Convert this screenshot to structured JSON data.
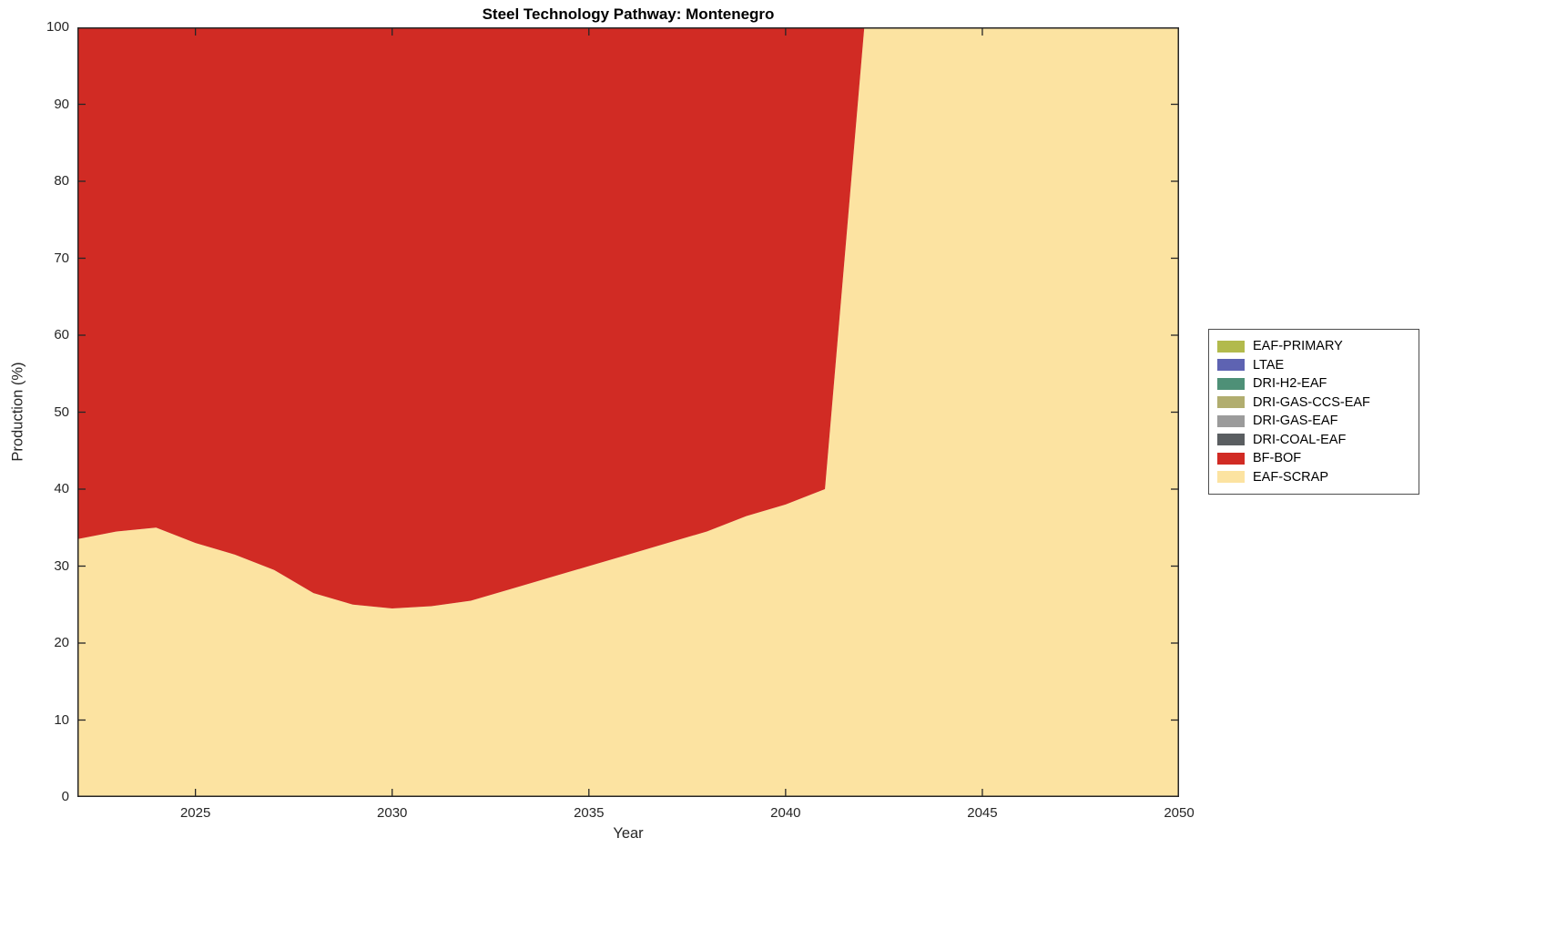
{
  "page": {
    "background": "#ffffff"
  },
  "chart_data": {
    "type": "area",
    "stacked": true,
    "title": "Steel Technology Pathway: Montenegro",
    "xlabel": "Year",
    "ylabel": "Production (%)",
    "xlim": [
      2022,
      2050
    ],
    "ylim": [
      0,
      100
    ],
    "x_ticks": [
      2025,
      2030,
      2035,
      2040,
      2045,
      2050
    ],
    "y_ticks": [
      0,
      10,
      20,
      30,
      40,
      50,
      60,
      70,
      80,
      90,
      100
    ],
    "grid": false,
    "axis_color": "#262626",
    "legend_position": "right-outside",
    "x": [
      2022,
      2023,
      2024,
      2025,
      2026,
      2027,
      2028,
      2029,
      2030,
      2031,
      2032,
      2033,
      2034,
      2035,
      2036,
      2037,
      2038,
      2039,
      2040,
      2041,
      2042,
      2043,
      2044,
      2045,
      2046,
      2047,
      2048,
      2049,
      2050
    ],
    "stack_order_bottom_to_top": [
      "EAF-SCRAP",
      "BF-BOF",
      "DRI-COAL-EAF",
      "DRI-GAS-EAF",
      "DRI-GAS-CCS-EAF",
      "DRI-H2-EAF",
      "LTAE",
      "EAF-PRIMARY"
    ],
    "series": [
      {
        "name": "EAF-PRIMARY",
        "color": "#b2ba4c",
        "values": [
          0,
          0,
          0,
          0,
          0,
          0,
          0,
          0,
          0,
          0,
          0,
          0,
          0,
          0,
          0,
          0,
          0,
          0,
          0,
          0,
          0,
          0,
          0,
          0,
          0,
          0,
          0,
          0,
          0
        ]
      },
      {
        "name": "LTAE",
        "color": "#5e63b2",
        "values": [
          0,
          0,
          0,
          0,
          0,
          0,
          0,
          0,
          0,
          0,
          0,
          0,
          0,
          0,
          0,
          0,
          0,
          0,
          0,
          0,
          0,
          0,
          0,
          0,
          0,
          0,
          0,
          0,
          0
        ]
      },
      {
        "name": "DRI-H2-EAF",
        "color": "#4e9077",
        "values": [
          0,
          0,
          0,
          0,
          0,
          0,
          0,
          0,
          0,
          0,
          0,
          0,
          0,
          0,
          0,
          0,
          0,
          0,
          0,
          0,
          0,
          0,
          0,
          0,
          0,
          0,
          0,
          0,
          0
        ]
      },
      {
        "name": "DRI-GAS-CCS-EAF",
        "color": "#b1ad6f",
        "values": [
          0,
          0,
          0,
          0,
          0,
          0,
          0,
          0,
          0,
          0,
          0,
          0,
          0,
          0,
          0,
          0,
          0,
          0,
          0,
          0,
          0,
          0,
          0,
          0,
          0,
          0,
          0,
          0,
          0
        ]
      },
      {
        "name": "DRI-GAS-EAF",
        "color": "#9b9b9b",
        "values": [
          0,
          0,
          0,
          0,
          0,
          0,
          0,
          0,
          0,
          0,
          0,
          0,
          0,
          0,
          0,
          0,
          0,
          0,
          0,
          0,
          0,
          0,
          0,
          0,
          0,
          0,
          0,
          0,
          0
        ]
      },
      {
        "name": "DRI-COAL-EAF",
        "color": "#5a5e61",
        "values": [
          0,
          0,
          0,
          0,
          0,
          0,
          0,
          0,
          0,
          0,
          0,
          0,
          0,
          0,
          0,
          0,
          0,
          0,
          0,
          0,
          0,
          0,
          0,
          0,
          0,
          0,
          0,
          0,
          0
        ]
      },
      {
        "name": "BF-BOF",
        "color": "#d12b24",
        "values": [
          66.5,
          65.5,
          65,
          67,
          68.5,
          70.5,
          73.5,
          75,
          75.5,
          75.2,
          74.5,
          73,
          71.5,
          70,
          68.5,
          67,
          65.5,
          63.5,
          62,
          60,
          0,
          0,
          0,
          0,
          0,
          0,
          0,
          0,
          0
        ]
      },
      {
        "name": "EAF-SCRAP",
        "color": "#fce3a1",
        "values": [
          33.5,
          34.5,
          35,
          33,
          31.5,
          29.5,
          26.5,
          25,
          24.5,
          24.8,
          25.5,
          27,
          28.5,
          30,
          31.5,
          33,
          34.5,
          36.5,
          38,
          40,
          100,
          100,
          100,
          100,
          100,
          100,
          100,
          100,
          100
        ]
      }
    ]
  }
}
